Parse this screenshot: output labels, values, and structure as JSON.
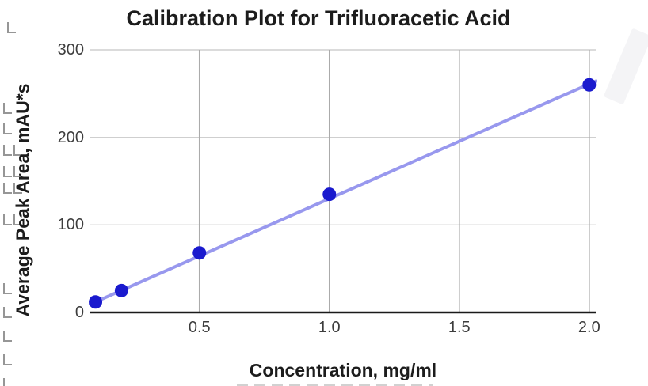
{
  "chart_data": {
    "type": "scatter",
    "title": "Calibration Plot for Trifluoracetic Acid",
    "xlabel": "Concentration, mg/ml",
    "ylabel": "Average Peak Area, mAU*s",
    "x": [
      0.1,
      0.2,
      0.5,
      1.0,
      2.0
    ],
    "y": [
      12,
      25,
      68,
      135,
      260
    ],
    "trendline": {
      "type": "linear",
      "slope": 131,
      "intercept": -1
    },
    "x_ticks": [
      0.5,
      1.0,
      1.5,
      2.0
    ],
    "x_tick_labels": [
      "0.5",
      "1.0",
      "1.5",
      "2.0"
    ],
    "y_ticks": [
      0,
      100,
      200,
      300
    ],
    "y_tick_labels": [
      "0",
      "100",
      "200",
      "300"
    ],
    "xlim": [
      0.08,
      2.025
    ],
    "ylim": [
      0,
      300
    ],
    "grid": true,
    "legend": "none",
    "colors": {
      "point": "#1a1ace",
      "trendline": "#9898ee",
      "h_gridline": "#cfcfcf",
      "v_gridline": "#ababab",
      "axis_baseline": "#1a1a1a",
      "tick_label": "#3d3d3d",
      "title": "#1c1c1c"
    }
  }
}
